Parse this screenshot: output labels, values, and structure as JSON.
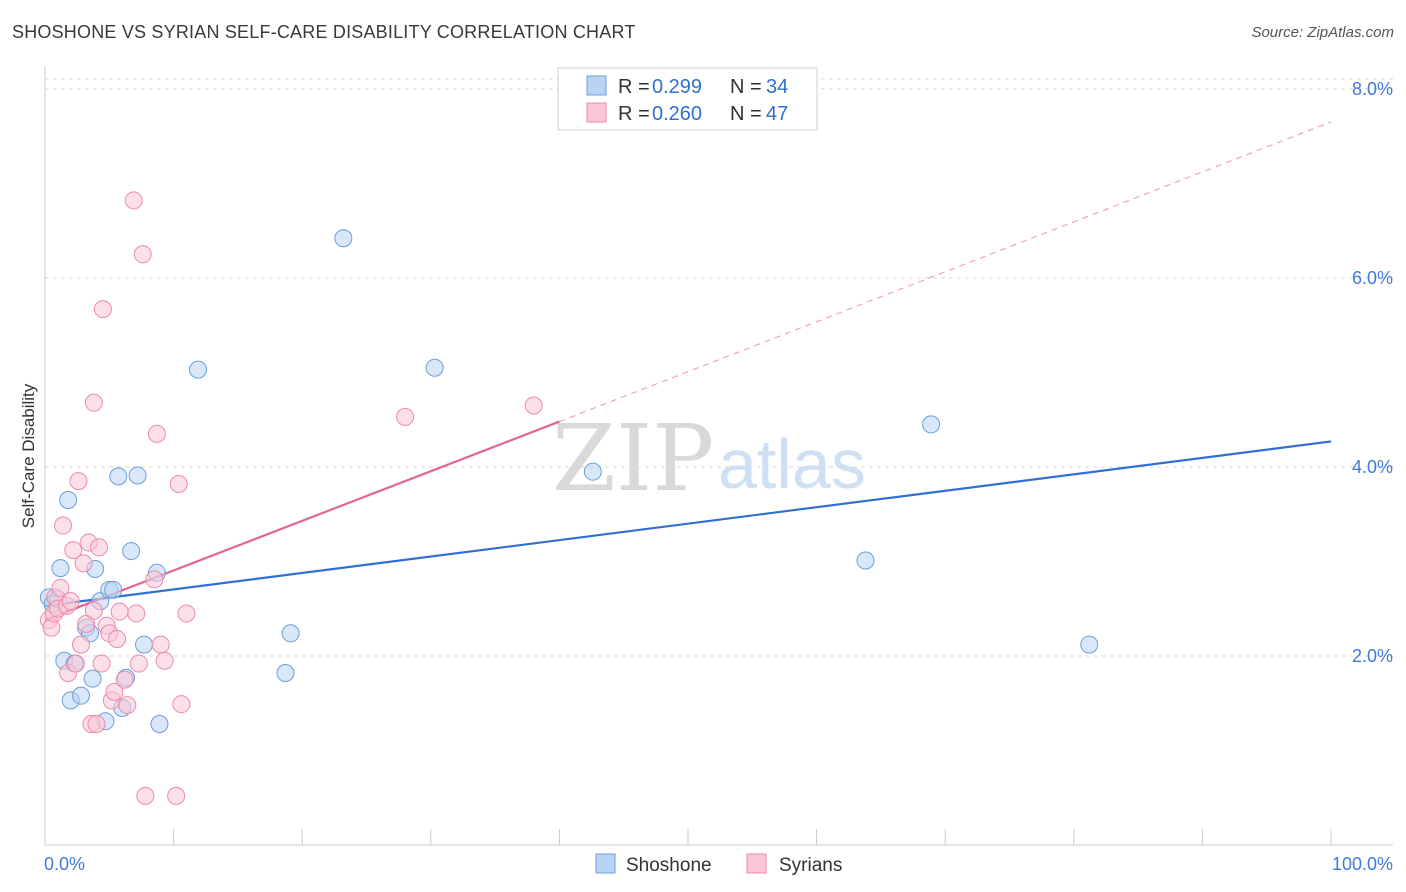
{
  "title": "SHOSHONE VS SYRIAN SELF-CARE DISABILITY CORRELATION CHART",
  "source": "Source: ZipAtlas.com",
  "watermark": {
    "part1": "ZIP",
    "part2": "atlas"
  },
  "colors": {
    "shoshone_fill": "#b9d3f3",
    "shoshone_stroke": "#6a9fe0",
    "shoshone_line": "#2f6fd1",
    "syrian_fill": "#f9c6d6",
    "syrian_stroke": "#ee8aab",
    "syrian_line": "#e06890",
    "grid": "#d8d8d8",
    "axis_text": "#3f7bd6"
  },
  "legend": {
    "rows": [
      {
        "r_label": "R =",
        "r_value": "0.299",
        "n_label": "N =",
        "n_value": "34"
      },
      {
        "r_label": "R =",
        "r_value": "0.260",
        "n_label": "N =",
        "n_value": "47"
      }
    ]
  },
  "chart_data": {
    "type": "scatter",
    "xlabel": "",
    "ylabel": "Self-Care Disability",
    "xlim": [
      0,
      100
    ],
    "ylim": [
      0,
      8.2
    ],
    "x_tick_labels": [
      "0.0%",
      "100.0%"
    ],
    "y_ticks": [
      2,
      4,
      6,
      8
    ],
    "y_tick_labels": [
      "2.0%",
      "4.0%",
      "6.0%",
      "8.0%"
    ],
    "series": [
      {
        "name": "Shoshone",
        "points": [
          [
            0.3,
            2.62
          ],
          [
            0.6,
            2.55
          ],
          [
            1.0,
            2.6
          ],
          [
            1.2,
            2.93
          ],
          [
            1.5,
            1.95
          ],
          [
            1.8,
            3.65
          ],
          [
            2.0,
            1.53
          ],
          [
            2.3,
            1.92
          ],
          [
            2.8,
            1.58
          ],
          [
            3.2,
            2.3
          ],
          [
            3.5,
            2.24
          ],
          [
            3.7,
            1.76
          ],
          [
            3.9,
            2.92
          ],
          [
            4.3,
            2.58
          ],
          [
            4.7,
            1.31
          ],
          [
            5.0,
            2.7
          ],
          [
            5.3,
            2.7
          ],
          [
            5.7,
            3.9
          ],
          [
            6.0,
            1.45
          ],
          [
            6.3,
            1.77
          ],
          [
            6.7,
            3.11
          ],
          [
            7.2,
            3.91
          ],
          [
            7.7,
            2.12
          ],
          [
            8.7,
            2.88
          ],
          [
            8.9,
            1.28
          ],
          [
            11.9,
            5.03
          ],
          [
            18.7,
            1.82
          ],
          [
            19.1,
            2.24
          ],
          [
            23.2,
            6.42
          ],
          [
            30.3,
            5.05
          ],
          [
            42.6,
            3.95
          ],
          [
            63.8,
            3.01
          ],
          [
            68.9,
            4.45
          ],
          [
            81.2,
            2.12
          ]
        ]
      },
      {
        "name": "Syrians",
        "points": [
          [
            0.3,
            2.38
          ],
          [
            0.5,
            2.3
          ],
          [
            0.7,
            2.45
          ],
          [
            0.8,
            2.62
          ],
          [
            1.0,
            2.5
          ],
          [
            1.2,
            2.72
          ],
          [
            1.4,
            3.38
          ],
          [
            1.7,
            2.53
          ],
          [
            1.8,
            1.82
          ],
          [
            2.0,
            2.58
          ],
          [
            2.2,
            3.12
          ],
          [
            2.4,
            1.92
          ],
          [
            2.6,
            3.85
          ],
          [
            2.8,
            2.12
          ],
          [
            3.0,
            2.98
          ],
          [
            3.2,
            2.34
          ],
          [
            3.4,
            3.2
          ],
          [
            3.6,
            1.28
          ],
          [
            3.8,
            2.48
          ],
          [
            4.0,
            1.28
          ],
          [
            4.2,
            3.15
          ],
          [
            4.4,
            1.92
          ],
          [
            4.5,
            5.67
          ],
          [
            4.8,
            2.32
          ],
          [
            5.0,
            2.24
          ],
          [
            5.2,
            1.53
          ],
          [
            5.4,
            1.62
          ],
          [
            5.6,
            2.18
          ],
          [
            5.8,
            2.47
          ],
          [
            6.2,
            1.75
          ],
          [
            6.4,
            1.48
          ],
          [
            6.9,
            6.82
          ],
          [
            7.1,
            2.45
          ],
          [
            7.3,
            1.92
          ],
          [
            7.6,
            6.25
          ],
          [
            7.8,
            0.52
          ],
          [
            8.5,
            2.81
          ],
          [
            8.7,
            4.35
          ],
          [
            9.0,
            2.12
          ],
          [
            9.3,
            1.95
          ],
          [
            10.2,
            0.52
          ],
          [
            10.4,
            3.82
          ],
          [
            10.6,
            1.49
          ],
          [
            11.0,
            2.45
          ],
          [
            3.8,
            4.68
          ],
          [
            28.0,
            4.53
          ],
          [
            38.0,
            4.65
          ]
        ]
      }
    ],
    "trend_lines": [
      {
        "series": "Shoshone",
        "x": [
          0,
          100
        ],
        "y": [
          2.53,
          4.27
        ],
        "style": "solid"
      },
      {
        "series": "Syrians",
        "x": [
          0,
          40
        ],
        "y": [
          2.38,
          4.48
        ],
        "style": "solid"
      },
      {
        "series": "Syrians",
        "x": [
          40,
          100
        ],
        "y": [
          4.48,
          7.65
        ],
        "style": "dashed"
      }
    ],
    "grid": true,
    "legend_position": "top-center"
  }
}
